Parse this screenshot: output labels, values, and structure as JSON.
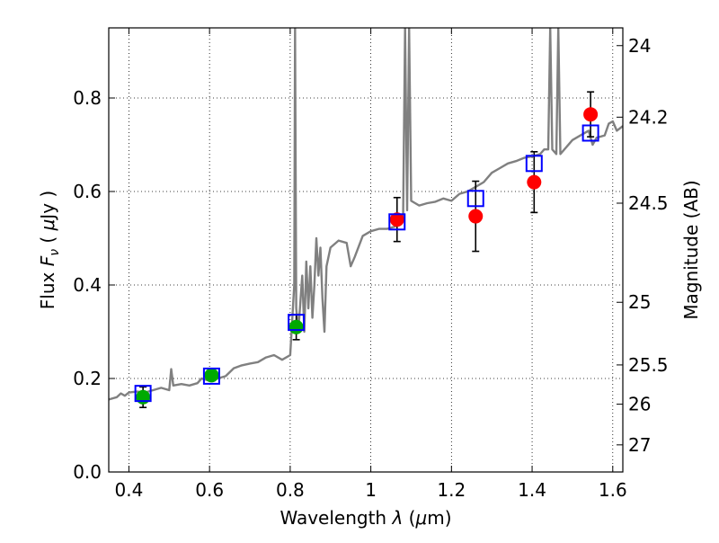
{
  "chart_data": {
    "type": "scatter",
    "title": "",
    "xlabel": "Wavelength  λ (μm)",
    "ylabel": "Flux  F_ν  ( μJy )",
    "y2label": "Magnitude (AB)",
    "xlim": [
      0.35,
      1.625
    ],
    "ylim": [
      0.0,
      0.95
    ],
    "grid": true,
    "x_ticks": [
      0.4,
      0.6,
      0.8,
      1.0,
      1.2,
      1.4,
      1.6
    ],
    "x_tick_labels": [
      "0.4",
      "0.6",
      "0.8",
      "1",
      "1.2",
      "1.4",
      "1.6"
    ],
    "y_ticks": [
      0.0,
      0.2,
      0.4,
      0.6,
      0.8
    ],
    "y_tick_labels": [
      "0.0",
      "0.2",
      "0.4",
      "0.6",
      "0.8"
    ],
    "y2_ticks": [
      {
        "label": "24",
        "flux": 0.912
      },
      {
        "label": "24.2",
        "flux": 0.759
      },
      {
        "label": "24.5",
        "flux": 0.575
      },
      {
        "label": "25",
        "flux": 0.363
      },
      {
        "label": "25.5",
        "flux": 0.229
      },
      {
        "label": "26",
        "flux": 0.145
      },
      {
        "label": "27",
        "flux": 0.058
      }
    ],
    "colors": {
      "model": "#808080",
      "photometry_blue": "#00aa00",
      "photometry_red": "#ff0000",
      "model_box": "#0000ff",
      "errorbar": "#000000"
    },
    "series": [
      {
        "name": "model spectrum",
        "kind": "line",
        "points": [
          [
            0.35,
            0.155
          ],
          [
            0.37,
            0.16
          ],
          [
            0.38,
            0.168
          ],
          [
            0.39,
            0.163
          ],
          [
            0.4,
            0.17
          ],
          [
            0.42,
            0.172
          ],
          [
            0.44,
            0.17
          ],
          [
            0.46,
            0.175
          ],
          [
            0.48,
            0.18
          ],
          [
            0.5,
            0.175
          ],
          [
            0.505,
            0.22
          ],
          [
            0.51,
            0.185
          ],
          [
            0.53,
            0.188
          ],
          [
            0.55,
            0.185
          ],
          [
            0.57,
            0.19
          ],
          [
            0.58,
            0.2
          ],
          [
            0.6,
            0.195
          ],
          [
            0.62,
            0.2
          ],
          [
            0.64,
            0.205
          ],
          [
            0.66,
            0.222
          ],
          [
            0.68,
            0.228
          ],
          [
            0.7,
            0.232
          ],
          [
            0.72,
            0.235
          ],
          [
            0.74,
            0.245
          ],
          [
            0.76,
            0.25
          ],
          [
            0.78,
            0.24
          ],
          [
            0.8,
            0.25
          ],
          [
            0.81,
            0.4
          ],
          [
            0.812,
            0.95
          ],
          [
            0.815,
            0.35
          ],
          [
            0.82,
            0.3
          ],
          [
            0.83,
            0.42
          ],
          [
            0.835,
            0.3
          ],
          [
            0.84,
            0.45
          ],
          [
            0.845,
            0.35
          ],
          [
            0.85,
            0.44
          ],
          [
            0.855,
            0.33
          ],
          [
            0.86,
            0.4
          ],
          [
            0.865,
            0.5
          ],
          [
            0.87,
            0.42
          ],
          [
            0.875,
            0.48
          ],
          [
            0.88,
            0.37
          ],
          [
            0.885,
            0.3
          ],
          [
            0.89,
            0.44
          ],
          [
            0.9,
            0.48
          ],
          [
            0.92,
            0.495
          ],
          [
            0.94,
            0.49
          ],
          [
            0.95,
            0.44
          ],
          [
            0.96,
            0.46
          ],
          [
            0.98,
            0.505
          ],
          [
            1.0,
            0.515
          ],
          [
            1.02,
            0.52
          ],
          [
            1.04,
            0.52
          ],
          [
            1.06,
            0.525
          ],
          [
            1.07,
            0.535
          ],
          [
            1.08,
            0.54
          ],
          [
            1.085,
            0.95
          ],
          [
            1.09,
            0.56
          ],
          [
            1.095,
            0.95
          ],
          [
            1.1,
            0.58
          ],
          [
            1.12,
            0.57
          ],
          [
            1.14,
            0.575
          ],
          [
            1.16,
            0.578
          ],
          [
            1.18,
            0.585
          ],
          [
            1.2,
            0.58
          ],
          [
            1.22,
            0.595
          ],
          [
            1.24,
            0.6
          ],
          [
            1.26,
            0.61
          ],
          [
            1.28,
            0.62
          ],
          [
            1.3,
            0.64
          ],
          [
            1.32,
            0.65
          ],
          [
            1.34,
            0.66
          ],
          [
            1.36,
            0.665
          ],
          [
            1.38,
            0.672
          ],
          [
            1.4,
            0.675
          ],
          [
            1.42,
            0.68
          ],
          [
            1.43,
            0.69
          ],
          [
            1.44,
            0.69
          ],
          [
            1.445,
            0.95
          ],
          [
            1.45,
            0.69
          ],
          [
            1.46,
            0.68
          ],
          [
            1.465,
            0.95
          ],
          [
            1.47,
            0.68
          ],
          [
            1.5,
            0.71
          ],
          [
            1.52,
            0.72
          ],
          [
            1.54,
            0.73
          ],
          [
            1.55,
            0.7
          ],
          [
            1.56,
            0.715
          ],
          [
            1.58,
            0.72
          ],
          [
            1.59,
            0.745
          ],
          [
            1.6,
            0.75
          ],
          [
            1.61,
            0.73
          ],
          [
            1.625,
            0.74
          ]
        ]
      },
      {
        "name": "model photometry",
        "kind": "open-square",
        "x": [
          0.435,
          0.605,
          0.815,
          1.065,
          1.26,
          1.405,
          1.545
        ],
        "y": [
          0.168,
          0.205,
          0.32,
          0.535,
          0.585,
          0.66,
          0.725
        ]
      },
      {
        "name": "observed photometry (optical)",
        "kind": "filled-circle",
        "color_key": "photometry_blue",
        "x": [
          0.435,
          0.605,
          0.815
        ],
        "y": [
          0.16,
          0.207,
          0.31
        ],
        "err": [
          0.022,
          0.012,
          0.027
        ]
      },
      {
        "name": "observed photometry (near-IR)",
        "kind": "filled-circle",
        "color_key": "photometry_red",
        "x": [
          1.065,
          1.26,
          1.405,
          1.545
        ],
        "y": [
          0.54,
          0.547,
          0.62,
          0.765
        ],
        "err": [
          0.047,
          0.075,
          0.065,
          0.048
        ]
      }
    ]
  }
}
